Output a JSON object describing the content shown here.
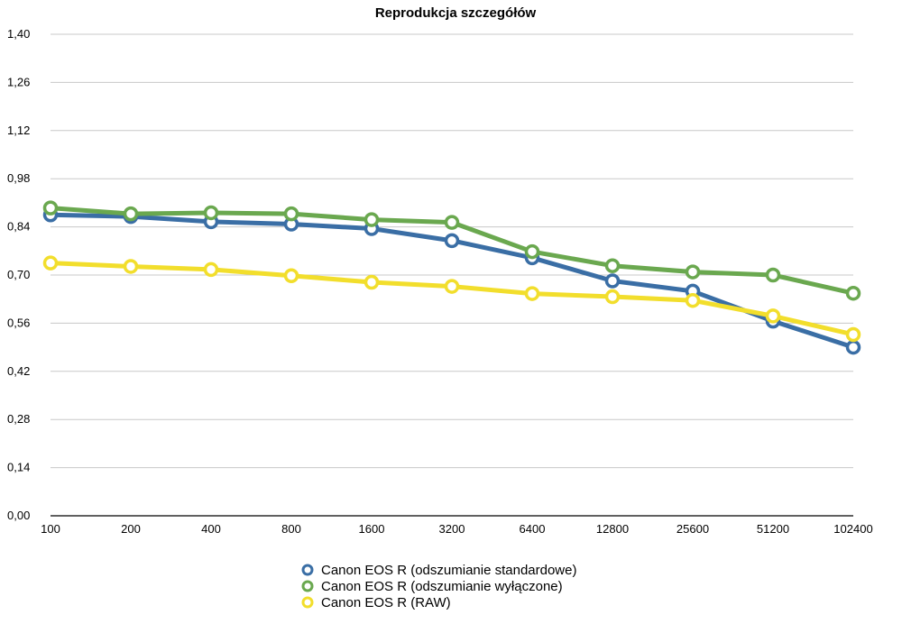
{
  "chart_data": {
    "type": "line",
    "title": "Reprodukcja szczegółów",
    "xlabel": "",
    "ylabel": "",
    "categories": [
      "100",
      "200",
      "400",
      "800",
      "1600",
      "3200",
      "6400",
      "12800",
      "25600",
      "51200",
      "102400"
    ],
    "ylim": [
      0,
      1.4
    ],
    "yticks": [
      "0,00",
      "0,14",
      "0,28",
      "0,42",
      "0,56",
      "0,70",
      "0,84",
      "0,98",
      "1,12",
      "1,26",
      "1,40"
    ],
    "grid": true,
    "legend_position": "bottom",
    "series": [
      {
        "name": "Canon EOS R (odszumianie standardowe)",
        "color": "#3a6ea5",
        "values": [
          0.875,
          0.87,
          0.855,
          0.848,
          0.835,
          0.8,
          0.75,
          0.683,
          0.653,
          0.566,
          0.49
        ]
      },
      {
        "name": "Canon EOS R (odszumianie wyłączone)",
        "color": "#6aa84f",
        "values": [
          0.895,
          0.878,
          0.881,
          0.878,
          0.861,
          0.853,
          0.768,
          0.727,
          0.709,
          0.7,
          0.647
        ]
      },
      {
        "name": "Canon EOS R (RAW)",
        "color": "#f2de2c",
        "values": [
          0.735,
          0.725,
          0.716,
          0.698,
          0.679,
          0.667,
          0.646,
          0.637,
          0.626,
          0.581,
          0.527
        ]
      }
    ]
  }
}
